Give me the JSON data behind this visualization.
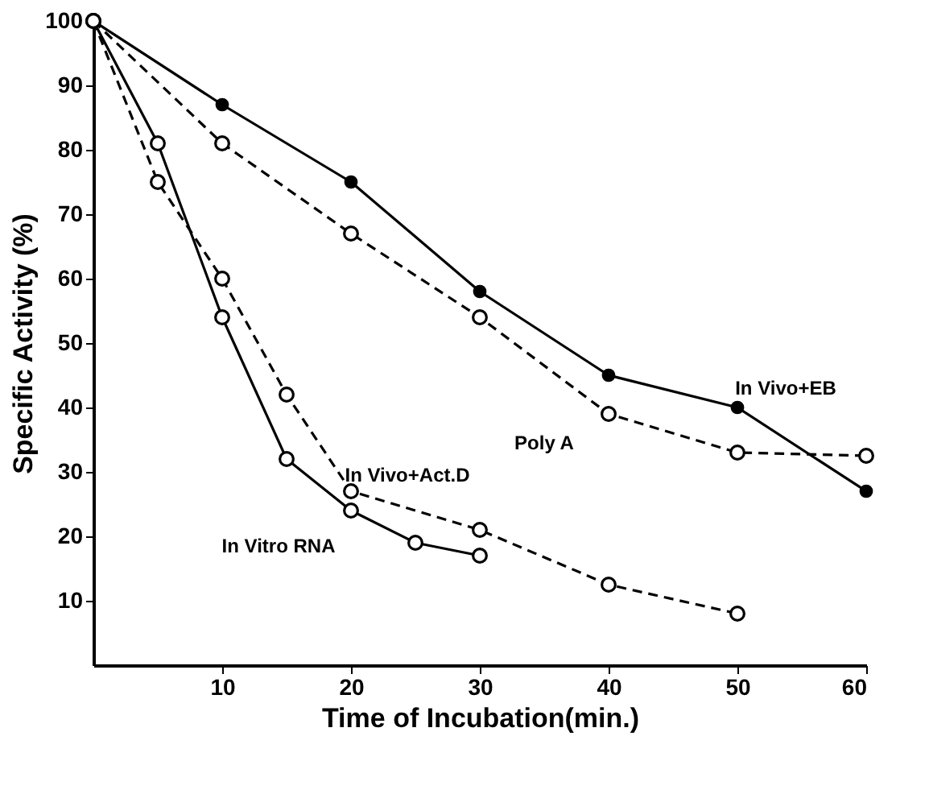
{
  "chart_data": {
    "type": "line",
    "xlabel": "Time of Incubation(min.)",
    "ylabel": "Specific Activity (%)",
    "xlim": [
      0,
      60
    ],
    "xticks": [
      10,
      20,
      30,
      40,
      50,
      60
    ],
    "ylim": [
      0,
      100
    ],
    "yticks": [
      10,
      20,
      30,
      40,
      50,
      60,
      70,
      80,
      90,
      100
    ],
    "marker": "circle",
    "series": [
      {
        "name": "In Vivo+EB",
        "color": "#000000",
        "line_style": "solid",
        "x": [
          0,
          10,
          20,
          30,
          40,
          50,
          60
        ],
        "values": [
          100,
          87,
          75,
          58,
          45,
          40,
          27
        ]
      },
      {
        "name": "Poly A",
        "color": "#000000",
        "line_style": "dashed",
        "x": [
          0,
          10,
          20,
          30,
          40,
          50,
          60
        ],
        "values": [
          100,
          81,
          67,
          54,
          39,
          33,
          32.5
        ]
      },
      {
        "name": "In Vivo+Act.D",
        "color": "#000000",
        "line_style": "dashed",
        "x": [
          0,
          5,
          10,
          15,
          20,
          30,
          40,
          50
        ],
        "values": [
          100,
          75,
          60,
          42,
          27,
          21,
          12.5,
          8
        ]
      },
      {
        "name": "In Vitro RNA",
        "color": "#000000",
        "line_style": "solid",
        "x": [
          0,
          5,
          10,
          15,
          20,
          25,
          30
        ],
        "values": [
          100,
          81,
          54,
          32,
          24,
          19,
          17
        ]
      }
    ]
  }
}
